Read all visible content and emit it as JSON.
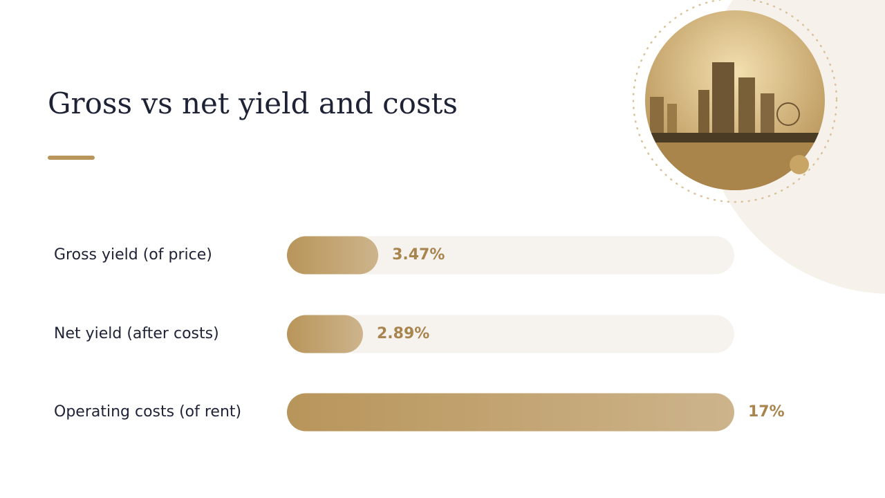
{
  "chart_data": {
    "type": "bar",
    "orientation": "horizontal",
    "title": "Gross vs net yield and costs",
    "categories": [
      "Gross yield (of price)",
      "Net yield (after costs)",
      "Operating costs (of rent)"
    ],
    "values": [
      3.47,
      2.89,
      17
    ],
    "value_labels": [
      "3.47%",
      "2.89%",
      "17%"
    ],
    "xlim": [
      0,
      17
    ],
    "color": "#b8955a"
  }
}
